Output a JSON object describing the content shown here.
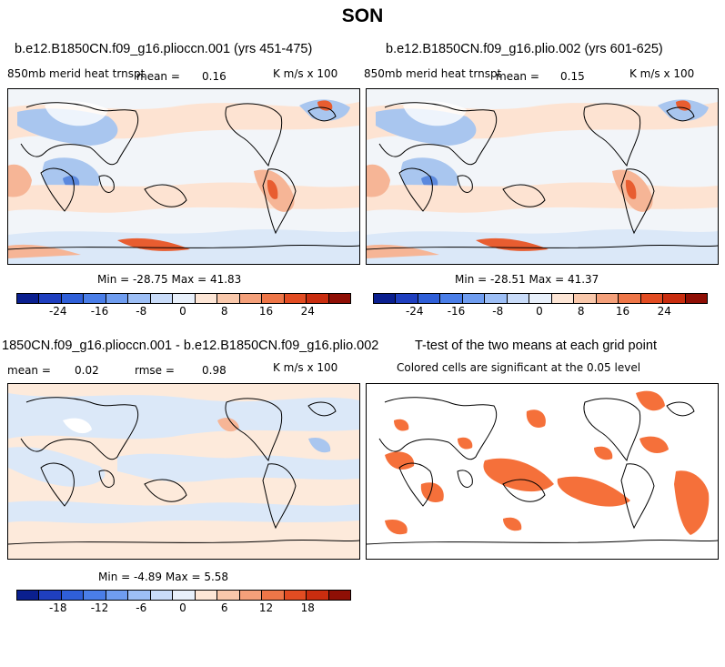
{
  "title": "SON",
  "panels": [
    {
      "title": "b.e12.B1850CN.f09_g16.plioccn.001 (yrs 451-475)",
      "var_label": "850mb merid heat trnspt",
      "mean_label": "mean =",
      "mean_value": "0.16",
      "units": "K m/s x 100",
      "minmax": "Min = -28.75 Max = 41.83"
    },
    {
      "title": "b.e12.B1850CN.f09_g16.plio.002 (yrs 601-625)",
      "var_label": "850mb merid heat trnspt",
      "mean_label": "mean =",
      "mean_value": "0.15",
      "units": "K m/s x 100",
      "minmax": "Min = -28.51 Max = 41.37"
    },
    {
      "title": "1850CN.f09_g16.plioccn.001 - b.e12.B1850CN.f09_g16.plio.002",
      "mean_label": "mean =",
      "mean_value": "0.02",
      "rmse_label": "rmse =",
      "rmse_value": "0.98",
      "units": "K m/s x 100",
      "minmax": "Min = -4.89 Max = 5.58"
    },
    {
      "title": "T-test of the two means at each grid point",
      "subtitle": "Colored cells are significant at the 0.05 level"
    }
  ],
  "colorbars": {
    "top_ticks": [
      "-24",
      "-16",
      "-8",
      "0",
      "8",
      "16",
      "24"
    ],
    "diff_ticks": [
      "-18",
      "-12",
      "-6",
      "0",
      "6",
      "12",
      "18"
    ],
    "colors": [
      "#0a1f8f",
      "#1f3fbf",
      "#2f5fd8",
      "#4a7ee8",
      "#6f9df0",
      "#9dbff6",
      "#c9dcf9",
      "#e8f0fb",
      "#fde6d6",
      "#f9c8ab",
      "#f4a07a",
      "#ee7648",
      "#e24c22",
      "#c92d0f",
      "#8f0f05"
    ],
    "colors_count": 15
  },
  "palette": {
    "blue_light": "#dbe8f8",
    "blue_mid": "#a9c6ef",
    "blue_dark": "#5c89de",
    "orange_light": "#fde3d2",
    "orange_mid": "#f6b596",
    "orange_dark": "#e85d30",
    "sig_orange": "#f5703a"
  }
}
